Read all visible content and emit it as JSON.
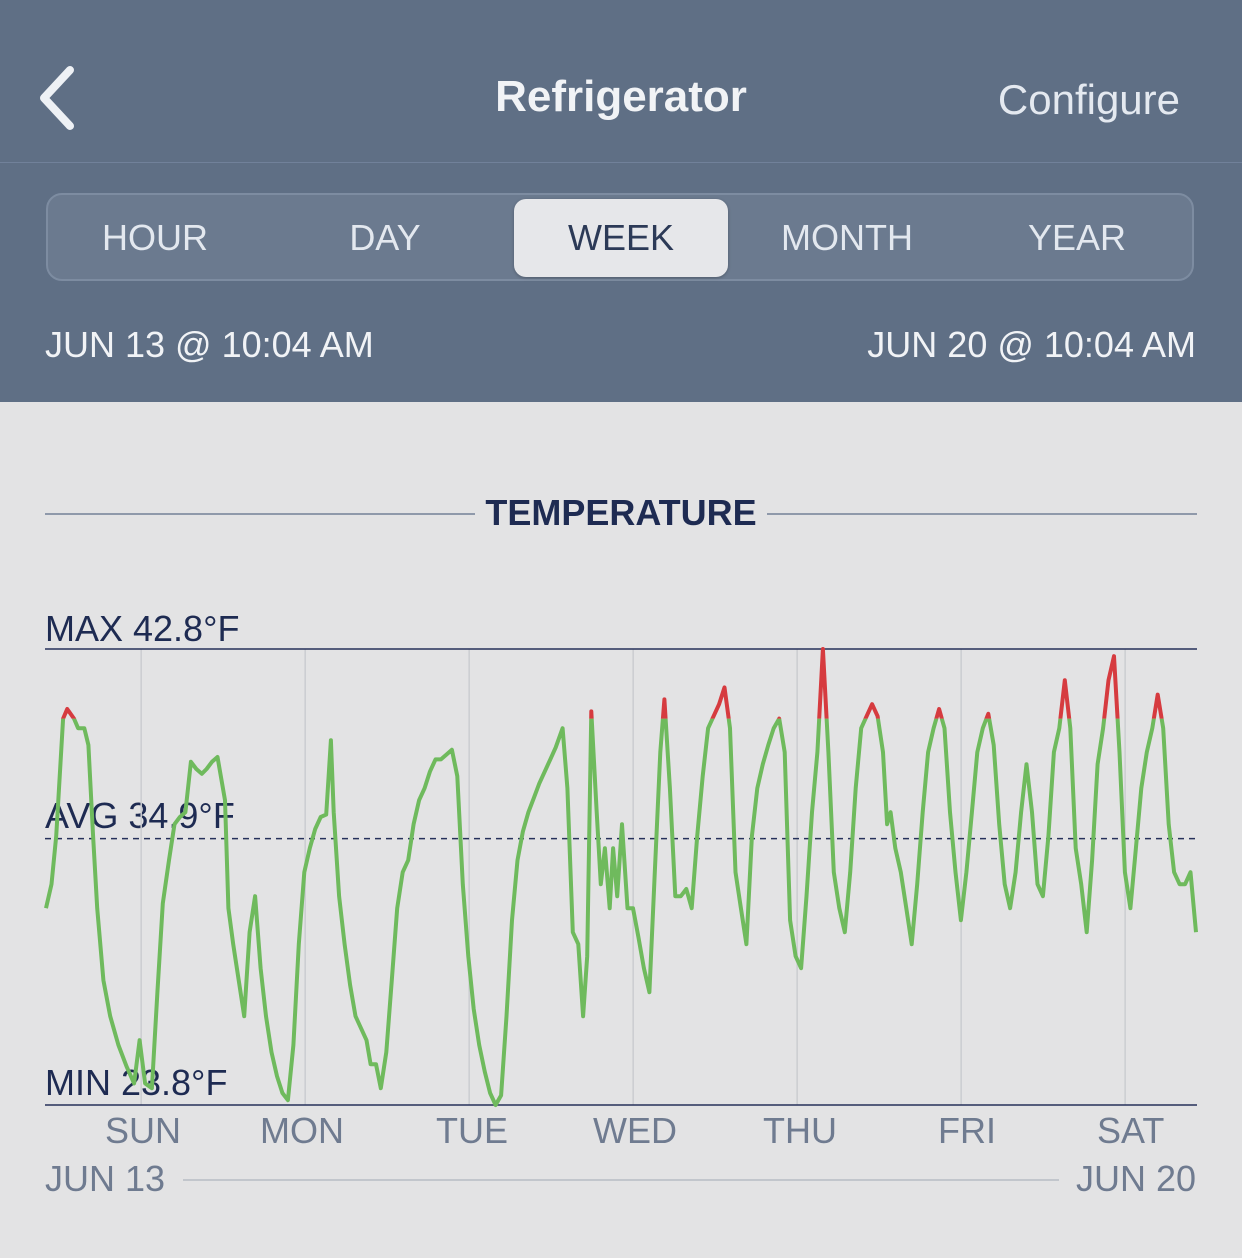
{
  "nav": {
    "title": "Refrigerator",
    "configure_label": "Configure",
    "back_icon": "chevron-left-icon"
  },
  "tabs": [
    "HOUR",
    "DAY",
    "WEEK",
    "MONTH",
    "YEAR"
  ],
  "active_tab": "WEEK",
  "range": {
    "start": "JUN 13 @ 10:04 AM",
    "end": "JUN 20 @ 10:04 AM"
  },
  "colors": {
    "header": "#5f6f85",
    "normal": "#6fba5d",
    "alert": "#d63b3f",
    "text_dark": "#1e2b52"
  },
  "chart_data": {
    "type": "line",
    "title": "TEMPERATURE",
    "max_label": "MAX 42.8°F",
    "avg_label": "AVG 34.9°F",
    "min_label": "MIN 23.8°F",
    "max": 42.8,
    "avg": 34.9,
    "min": 23.8,
    "alert_threshold": 39.9,
    "day_labels": [
      "SUN",
      "MON",
      "TUE",
      "WED",
      "THU",
      "FRI",
      "SAT"
    ],
    "start_label": "JUN 13",
    "end_label": "JUN 20",
    "x_unit": "hours since JUN 13 10:04 AM",
    "series": [
      {
        "points": [
          [
            0,
            32.0
          ],
          [
            0.8,
            33.0
          ],
          [
            1.5,
            35.0
          ],
          [
            2.5,
            39.9
          ],
          [
            3.1,
            40.3
          ],
          [
            4.1,
            39.9
          ],
          [
            4.7,
            39.5
          ],
          [
            5.6,
            39.5
          ],
          [
            6.2,
            38.8
          ],
          [
            6.9,
            35.0
          ],
          [
            7.5,
            32.0
          ],
          [
            8.4,
            29.0
          ],
          [
            9.4,
            27.5
          ],
          [
            10.6,
            26.3
          ],
          [
            11.8,
            25.4
          ],
          [
            12.9,
            24.7
          ],
          [
            13.7,
            26.5
          ],
          [
            14.5,
            24.7
          ],
          [
            15.5,
            24.5
          ],
          [
            16.3,
            28.5
          ],
          [
            17.1,
            32.2
          ],
          [
            18.0,
            34.0
          ],
          [
            18.8,
            35.5
          ],
          [
            19.6,
            35.8
          ],
          [
            20.4,
            36.0
          ],
          [
            21.2,
            38.1
          ],
          [
            22.0,
            37.8
          ],
          [
            22.8,
            37.6
          ],
          [
            23.5,
            37.8
          ],
          [
            24.3,
            38.1
          ],
          [
            25.1,
            38.3
          ],
          [
            26.2,
            36.5
          ],
          [
            26.7,
            32.0
          ],
          [
            27.4,
            30.5
          ],
          [
            28.2,
            29.0
          ],
          [
            29.0,
            27.5
          ],
          [
            29.8,
            31.0
          ],
          [
            30.6,
            32.5
          ],
          [
            31.4,
            29.5
          ],
          [
            32.2,
            27.5
          ],
          [
            33.0,
            26.0
          ],
          [
            33.8,
            25.0
          ],
          [
            34.6,
            24.3
          ],
          [
            35.4,
            24.0
          ],
          [
            36.2,
            26.3
          ],
          [
            37.0,
            30.5
          ],
          [
            37.8,
            33.5
          ],
          [
            38.6,
            34.5
          ],
          [
            39.4,
            35.3
          ],
          [
            40.2,
            35.8
          ],
          [
            41.0,
            35.9
          ],
          [
            41.7,
            39.0
          ],
          [
            42.1,
            36.0
          ],
          [
            42.9,
            32.5
          ],
          [
            43.7,
            30.5
          ],
          [
            44.5,
            28.8
          ],
          [
            45.3,
            27.5
          ],
          [
            46.1,
            27.0
          ],
          [
            46.9,
            26.5
          ],
          [
            47.5,
            25.5
          ],
          [
            48.3,
            25.5
          ],
          [
            49.0,
            24.5
          ],
          [
            49.8,
            26.0
          ],
          [
            50.6,
            29.0
          ],
          [
            51.4,
            32.0
          ],
          [
            52.2,
            33.5
          ],
          [
            53.0,
            34.0
          ],
          [
            53.8,
            35.5
          ],
          [
            54.6,
            36.5
          ],
          [
            55.4,
            37.0
          ],
          [
            56.2,
            37.7
          ],
          [
            57.0,
            38.2
          ],
          [
            57.8,
            38.2
          ],
          [
            58.6,
            38.4
          ],
          [
            59.4,
            38.6
          ],
          [
            60.2,
            37.5
          ],
          [
            61.0,
            33.0
          ],
          [
            61.8,
            30.0
          ],
          [
            62.6,
            27.8
          ],
          [
            63.4,
            26.3
          ],
          [
            64.2,
            25.2
          ],
          [
            65.0,
            24.3
          ],
          [
            65.8,
            23.8
          ],
          [
            66.6,
            24.2
          ],
          [
            67.4,
            27.5
          ],
          [
            68.2,
            31.5
          ],
          [
            69.0,
            34.0
          ],
          [
            69.8,
            35.2
          ],
          [
            70.6,
            36.0
          ],
          [
            71.4,
            36.6
          ],
          [
            72.2,
            37.2
          ],
          [
            73.0,
            37.7
          ],
          [
            73.8,
            38.2
          ],
          [
            74.6,
            38.7
          ],
          [
            75.6,
            39.5
          ],
          [
            76.3,
            37.0
          ],
          [
            77.1,
            31.0
          ],
          [
            77.9,
            30.5
          ],
          [
            78.6,
            27.5
          ],
          [
            79.2,
            30.0
          ],
          [
            79.8,
            40.2
          ],
          [
            80.6,
            36.0
          ],
          [
            81.2,
            33.0
          ],
          [
            81.8,
            34.5
          ],
          [
            82.5,
            32.0
          ],
          [
            83.0,
            34.5
          ],
          [
            83.6,
            32.5
          ],
          [
            84.3,
            35.5
          ],
          [
            85.1,
            32.0
          ],
          [
            85.9,
            32.0
          ],
          [
            86.7,
            30.8
          ],
          [
            87.5,
            29.5
          ],
          [
            88.3,
            28.5
          ],
          [
            89.1,
            33.5
          ],
          [
            89.9,
            38.5
          ],
          [
            90.5,
            40.7
          ],
          [
            91.3,
            37.0
          ],
          [
            92.1,
            32.5
          ],
          [
            92.9,
            32.5
          ],
          [
            93.7,
            32.8
          ],
          [
            94.5,
            32.0
          ],
          [
            95.3,
            35.0
          ],
          [
            96.1,
            37.5
          ],
          [
            96.9,
            39.5
          ],
          [
            97.7,
            40.0
          ],
          [
            98.5,
            40.5
          ],
          [
            99.3,
            41.2
          ],
          [
            100.1,
            39.5
          ],
          [
            100.9,
            33.5
          ],
          [
            101.7,
            32.0
          ],
          [
            102.5,
            30.5
          ],
          [
            103.3,
            35.0
          ],
          [
            104.1,
            37.0
          ],
          [
            104.9,
            38.0
          ],
          [
            105.7,
            38.8
          ],
          [
            106.5,
            39.5
          ],
          [
            107.3,
            39.9
          ],
          [
            108.1,
            38.5
          ],
          [
            108.9,
            31.5
          ],
          [
            109.7,
            30.0
          ],
          [
            110.5,
            29.5
          ],
          [
            111.3,
            32.5
          ],
          [
            112.1,
            36.0
          ],
          [
            112.9,
            38.5
          ],
          [
            113.7,
            42.8
          ],
          [
            114.5,
            38.5
          ],
          [
            115.3,
            33.5
          ],
          [
            116.1,
            32.0
          ],
          [
            116.9,
            31.0
          ],
          [
            117.7,
            33.5
          ],
          [
            118.5,
            37.0
          ],
          [
            119.3,
            39.5
          ],
          [
            120.1,
            40.0
          ],
          [
            120.9,
            40.5
          ],
          [
            121.7,
            40.0
          ],
          [
            122.5,
            38.5
          ],
          [
            123.1,
            35.5
          ],
          [
            123.6,
            36.0
          ],
          [
            124.3,
            34.5
          ],
          [
            125.1,
            33.5
          ],
          [
            125.9,
            32.0
          ],
          [
            126.7,
            30.5
          ],
          [
            127.5,
            33.0
          ],
          [
            128.3,
            36.0
          ],
          [
            129.1,
            38.5
          ],
          [
            129.9,
            39.5
          ],
          [
            130.7,
            40.3
          ],
          [
            131.5,
            39.5
          ],
          [
            132.3,
            36.0
          ],
          [
            133.1,
            33.5
          ],
          [
            133.9,
            31.5
          ],
          [
            134.7,
            33.5
          ],
          [
            135.5,
            36.0
          ],
          [
            136.3,
            38.5
          ],
          [
            137.1,
            39.5
          ],
          [
            137.9,
            40.1
          ],
          [
            138.7,
            38.8
          ],
          [
            139.5,
            35.5
          ],
          [
            140.3,
            33.0
          ],
          [
            141.1,
            32.0
          ],
          [
            141.9,
            33.5
          ],
          [
            142.7,
            36.0
          ],
          [
            143.5,
            38.0
          ],
          [
            144.3,
            36.0
          ],
          [
            145.1,
            33.0
          ],
          [
            145.9,
            32.5
          ],
          [
            146.7,
            35.0
          ],
          [
            147.5,
            38.5
          ],
          [
            148.3,
            39.5
          ],
          [
            149.1,
            41.5
          ],
          [
            149.9,
            39.5
          ],
          [
            150.7,
            34.5
          ],
          [
            151.5,
            33.0
          ],
          [
            152.3,
            31.0
          ],
          [
            153.1,
            34.0
          ],
          [
            153.9,
            38.0
          ],
          [
            154.7,
            39.5
          ],
          [
            155.5,
            41.5
          ],
          [
            156.3,
            42.5
          ],
          [
            157.1,
            38.5
          ],
          [
            157.9,
            33.5
          ],
          [
            158.7,
            32.0
          ],
          [
            159.5,
            34.5
          ],
          [
            160.3,
            37.0
          ],
          [
            161.1,
            38.5
          ],
          [
            161.9,
            39.5
          ],
          [
            162.7,
            40.9
          ],
          [
            163.5,
            39.5
          ],
          [
            164.3,
            35.5
          ],
          [
            165.1,
            33.5
          ],
          [
            165.9,
            33.0
          ],
          [
            166.7,
            33.0
          ],
          [
            167.5,
            33.5
          ],
          [
            168.3,
            31.0
          ]
        ]
      }
    ]
  }
}
